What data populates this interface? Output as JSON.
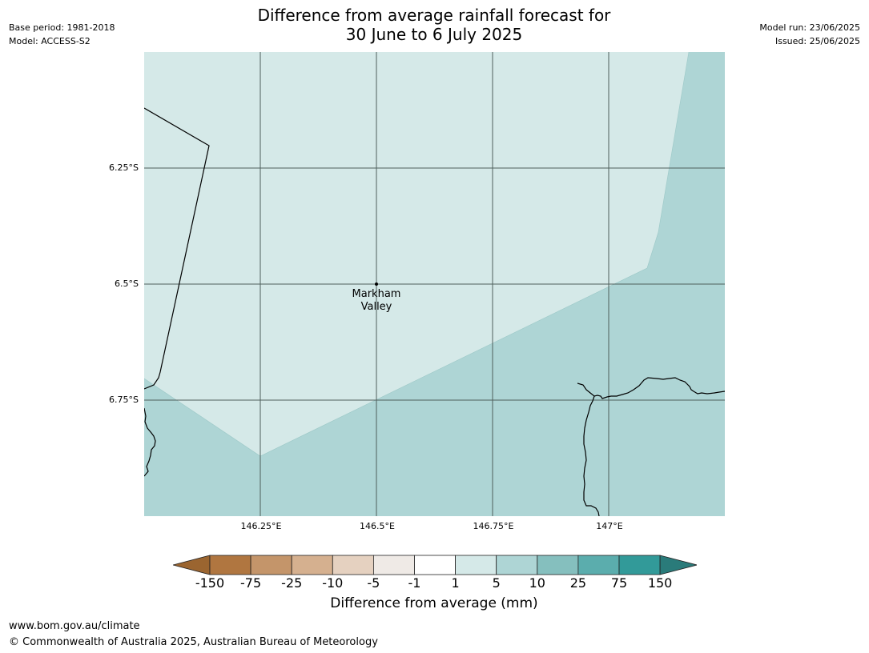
{
  "header": {
    "title_line1": "Difference from average rainfall forecast for",
    "title_line2": "30 June to 6 July 2025",
    "base_period": "Base period: 1981-2018",
    "model": "Model: ACCESS-S2",
    "model_run": "Model run: 23/06/2025",
    "issued": "Issued: 25/06/2025"
  },
  "map": {
    "lat_labels": [
      "6.25°S",
      "6.5°S",
      "6.75°S"
    ],
    "lon_labels": [
      "146.25°E",
      "146.5°E",
      "146.75°E",
      "147°E"
    ],
    "place": {
      "name_line1": "Markham",
      "name_line2": "Valley"
    },
    "colors": {
      "light_band": "#d5e9e8",
      "mid_band": "#aed5d5",
      "grid": "#4f5f5c"
    }
  },
  "legend": {
    "title": "Difference from average (mm)",
    "ticks": [
      "-150",
      "-75",
      "-25",
      "-10",
      "-5",
      "-1",
      "1",
      "5",
      "10",
      "25",
      "75",
      "150"
    ],
    "colors": [
      "#9b6530",
      "#b07640",
      "#c4956a",
      "#d5b08f",
      "#e5d1c0",
      "#efeae6",
      "#ffffff",
      "#d5e9e8",
      "#aed5d5",
      "#85bfbe",
      "#5badad",
      "#329a99",
      "#2a7b7a"
    ]
  },
  "footer": {
    "url": "www.bom.gov.au/climate",
    "copyright": "© Commonwealth of Australia 2025, Australian Bureau of Meteorology"
  }
}
